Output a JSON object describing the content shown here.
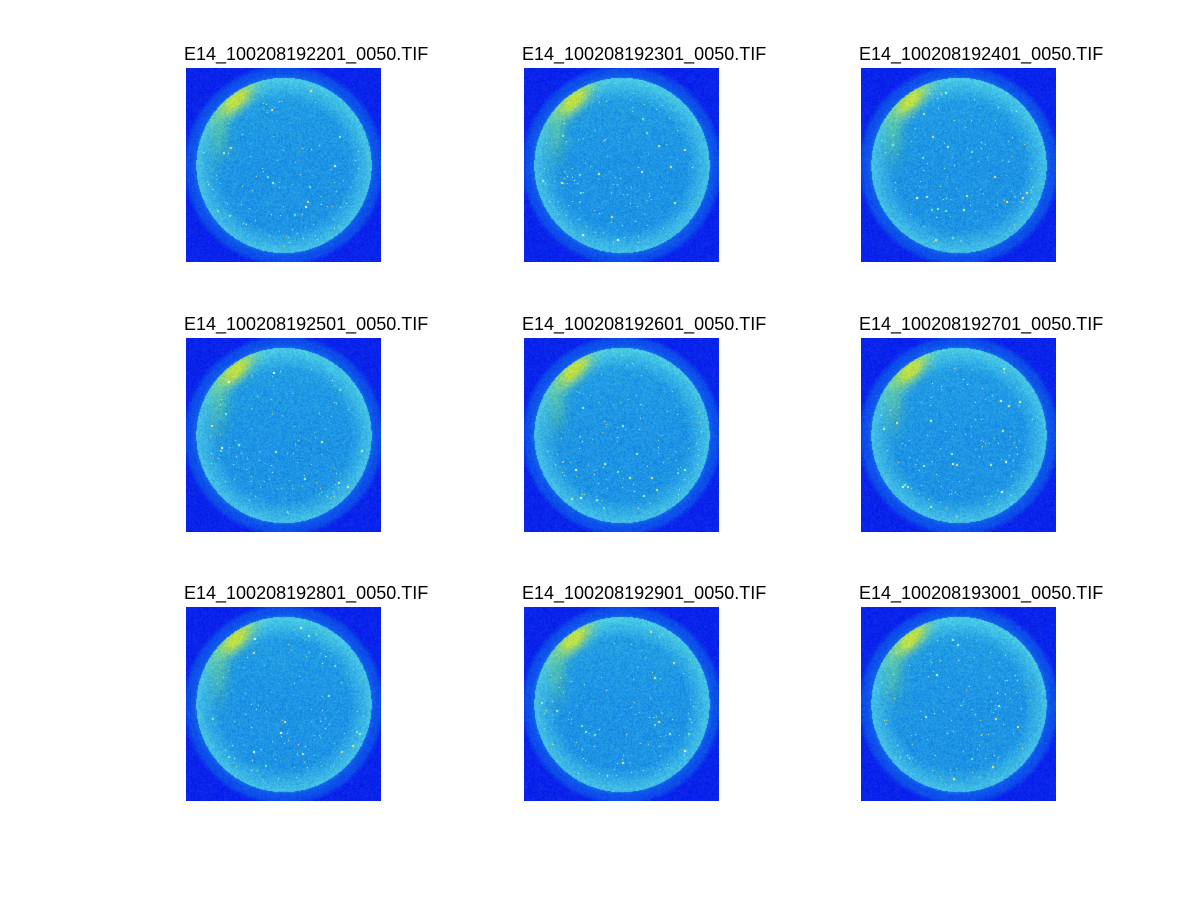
{
  "figure": {
    "panels": [
      {
        "title": "E14_100208192201_0050.TIF"
      },
      {
        "title": "E14_100208192301_0050.TIF"
      },
      {
        "title": "E14_100208192401_0050.TIF"
      },
      {
        "title": "E14_100208192501_0050.TIF"
      },
      {
        "title": "E14_100208192601_0050.TIF"
      },
      {
        "title": "E14_100208192701_0050.TIF"
      },
      {
        "title": "E14_100208192801_0050.TIF"
      },
      {
        "title": "E14_100208192901_0050.TIF"
      },
      {
        "title": "E14_100208193001_0050.TIF"
      }
    ],
    "image": {
      "page_background": "#FFFFFF",
      "title_color": "#000000",
      "background_blue": "#0A24EB",
      "halo_blue": "#1260EE",
      "disk_cyan": "#1E94E4",
      "rim_cyan": "#46C2E6",
      "spot_yellow_green": "#BEE146",
      "spot_green": "#6FD487",
      "speckle_colors": [
        "#AAFFDD",
        "#D8FF88",
        "#FFFFFF",
        "#66FFCC",
        "#FFE966"
      ]
    }
  },
  "chart_data": {
    "type": "heatmap",
    "title": "",
    "layout": "3x3 image montage, jet colormap, no axes ticks",
    "colormap": "jet",
    "panel_titles": [
      "E14_100208192201_0050.TIF",
      "E14_100208192301_0050.TIF",
      "E14_100208192401_0050.TIF",
      "E14_100208192501_0050.TIF",
      "E14_100208192601_0050.TIF",
      "E14_100208192701_0050.TIF",
      "E14_100208192801_0050.TIF",
      "E14_100208192901_0050.TIF",
      "E14_100208193001_0050.TIF"
    ]
  }
}
